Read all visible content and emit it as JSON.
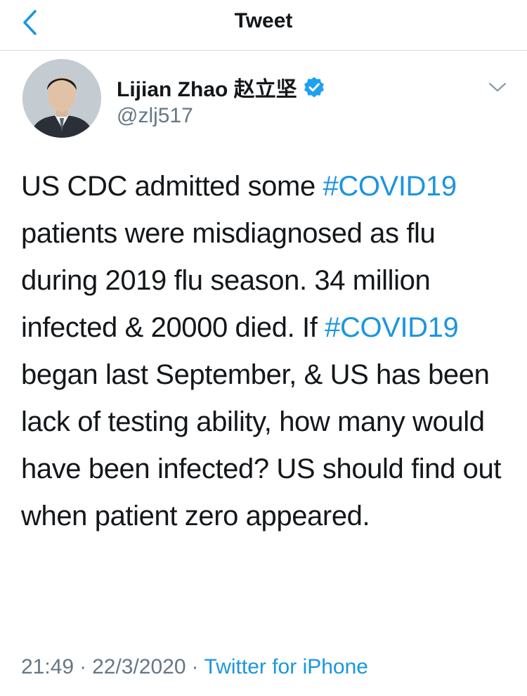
{
  "navbar": {
    "title": "Tweet"
  },
  "author": {
    "display_name": "Lijian Zhao 赵立坚",
    "handle": "@zlj517",
    "verified": true
  },
  "tweet": {
    "segments": [
      {
        "text": "US CDC admitted some ",
        "type": "text"
      },
      {
        "text": "#COVID19",
        "type": "hashtag"
      },
      {
        "text": " patients were misdiagnosed as flu during 2019 flu season. 34 million infected & 20000 died. If ",
        "type": "text"
      },
      {
        "text": "#COVID19",
        "type": "hashtag"
      },
      {
        "text": " began last September, & US has been lack of testing ability, how many would have been infected? US should find out when patient zero appeared.",
        "type": "text"
      }
    ]
  },
  "meta": {
    "time": "21:49",
    "separator": "·",
    "date": "22/3/2020",
    "source": "Twitter for iPhone"
  },
  "colors": {
    "accent": "#1b95e0",
    "secondary_text": "#657786",
    "divider": "#d9dde1"
  },
  "icons": {
    "back": "chevron-left-icon",
    "verified": "verified-badge-icon",
    "caret": "chevron-down-icon"
  }
}
